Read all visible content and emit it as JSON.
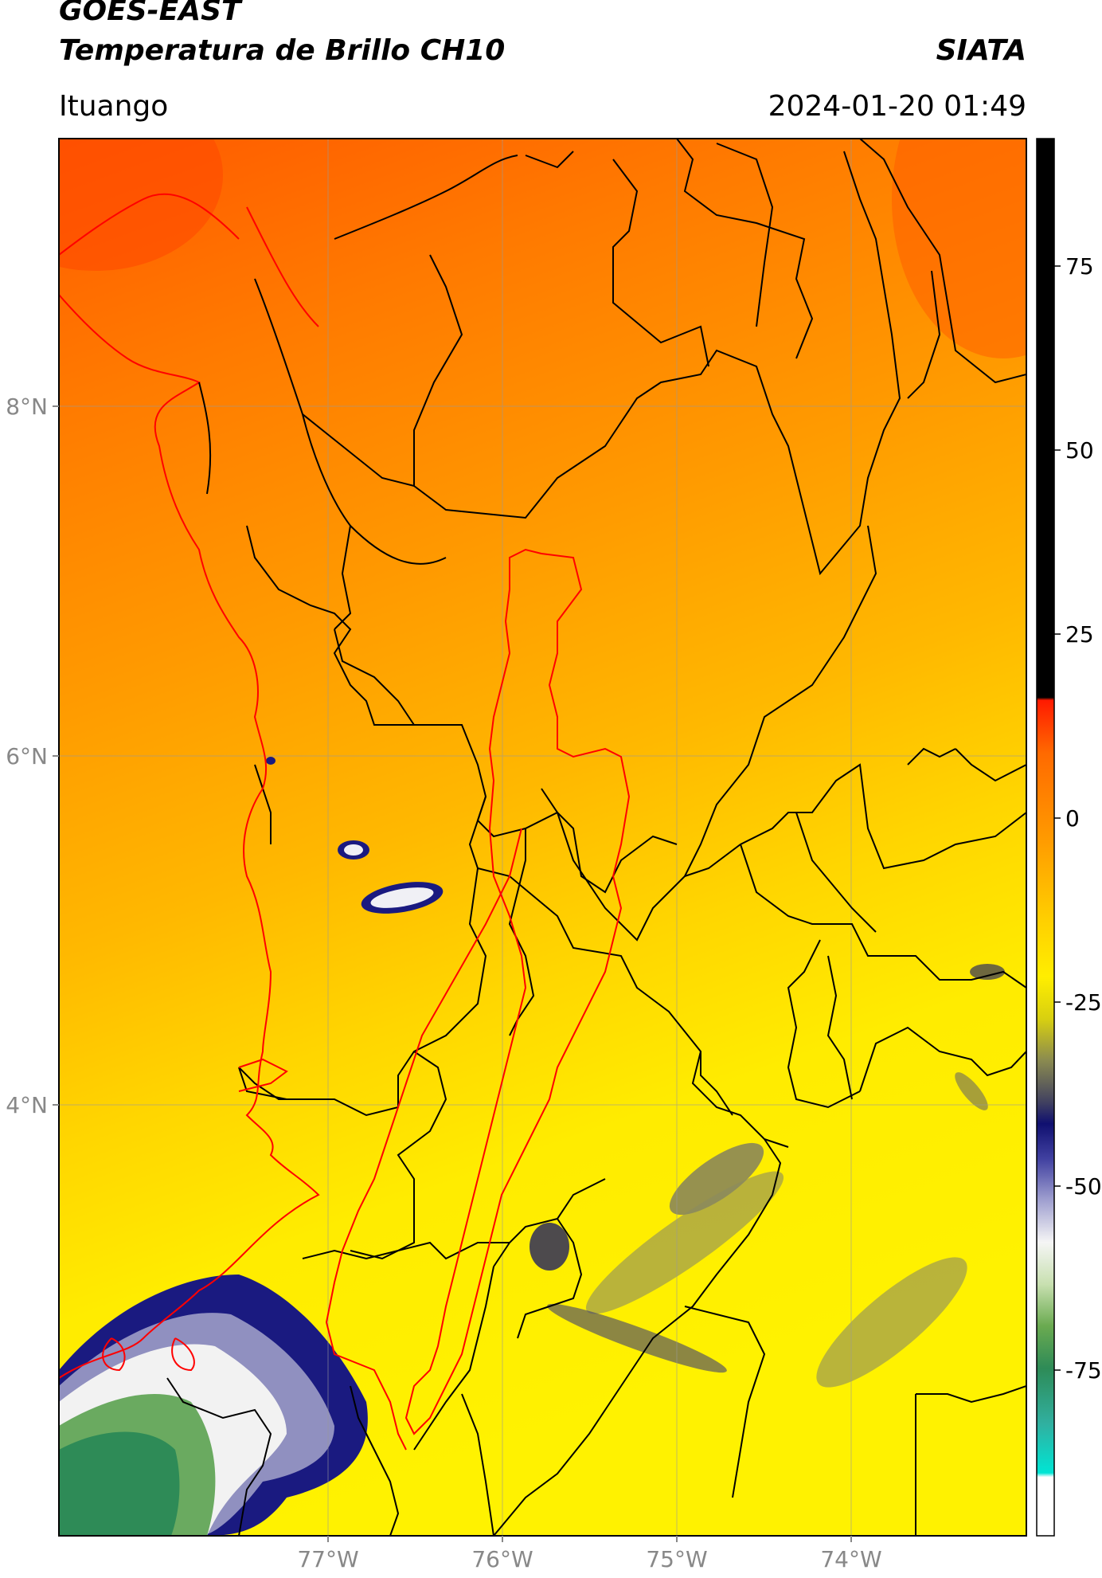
{
  "header": {
    "title_line1": "GOES-EAST",
    "title_line2": "Temperatura de Brillo CH10",
    "organization": "SIATA",
    "region": "Ituango",
    "datetime": "2024-01-20 01:49"
  },
  "map": {
    "lat_labels": [
      "8°N",
      "6°N",
      "4°N"
    ],
    "lon_labels": [
      "77°W",
      "76°W",
      "75°W",
      "74°W"
    ],
    "grid": true
  },
  "colorbar": {
    "ticks": [
      "75",
      "50",
      "25",
      "0",
      "-25",
      "-50",
      "-75"
    ],
    "colors": {
      "top_black": "#000000",
      "red": "#ff2200",
      "orange": "#ff9900",
      "yellow": "#ffee00",
      "olive": "#8a8a50",
      "navy": "#1a1a80",
      "white": "#f5f5f5",
      "green": "#2e8b57",
      "cyan": "#00e5d4"
    }
  }
}
